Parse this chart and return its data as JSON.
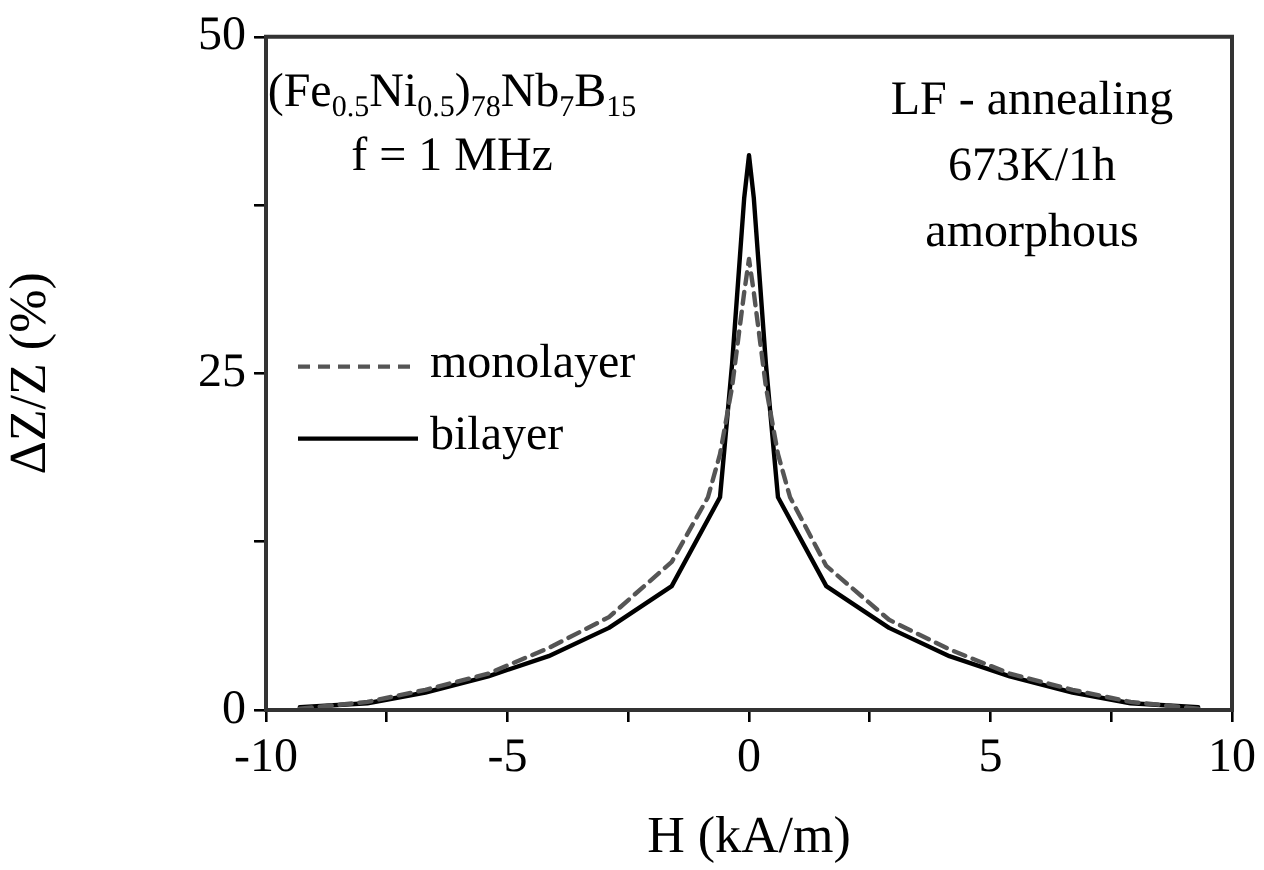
{
  "chart_data": {
    "type": "line",
    "xlabel": "H (kA/m)",
    "ylabel": "ΔZ/Z (%)",
    "annotations": [
      "(Fe$_{0.5}$Ni$_{0.5}$)$_{78}$Nb$_{7}$B$_{15}$",
      "f = 1 MHz",
      "LF - annealing",
      "673K/1h",
      "amorphous"
    ],
    "xlim": [
      -10,
      10
    ],
    "xticks": [
      -10,
      {
        "value": -7.5,
        "label": null
      },
      -5,
      {
        "value": -2.5,
        "label": null
      },
      0,
      {
        "value": 2.5,
        "label": null
      },
      5,
      {
        "value": 7.5,
        "label": null
      },
      10
    ],
    "ylim": [
      0,
      50
    ],
    "yticks": [
      0,
      {
        "value": 12.5,
        "label": null
      },
      25,
      {
        "value": 37.5,
        "label": null
      },
      50
    ],
    "grid": false,
    "legend": "left",
    "marker": "none",
    "series": [
      {
        "name": "monolayer",
        "color": "#555555",
        "line_style": "dashed",
        "x": [
          -9.3,
          -7.9,
          -6.7,
          -5.4,
          -4.15,
          -2.9,
          -1.6,
          -0.85,
          -0.6,
          -0.35,
          -0.1,
          0,
          0.1,
          0.35,
          0.6,
          0.85,
          1.6,
          2.9,
          4.15,
          5.4,
          6.7,
          7.9,
          9.3
        ],
        "values": [
          0.1,
          0.6,
          1.5,
          2.7,
          4.6,
          6.9,
          11,
          15.8,
          19,
          24,
          31,
          33.5,
          31,
          24,
          19,
          15.8,
          10.7,
          6.7,
          4.5,
          2.7,
          1.5,
          0.6,
          0.1
        ]
      },
      {
        "name": "bilayer",
        "color": "#000000",
        "line_style": "solid",
        "x": [
          -9.3,
          -7.9,
          -6.7,
          -5.4,
          -4.15,
          -2.9,
          -1.6,
          -0.6,
          -0.35,
          -0.1,
          0,
          0.1,
          0.35,
          0.6,
          1.6,
          2.9,
          4.15,
          5.4,
          6.7,
          7.9,
          9.3
        ],
        "values": [
          0.2,
          0.5,
          1.3,
          2.5,
          4,
          6.1,
          9.2,
          15.8,
          25.7,
          38,
          41.2,
          38,
          25.7,
          15.8,
          9.2,
          6.1,
          4,
          2.5,
          1.3,
          0.5,
          0.2
        ]
      }
    ]
  }
}
